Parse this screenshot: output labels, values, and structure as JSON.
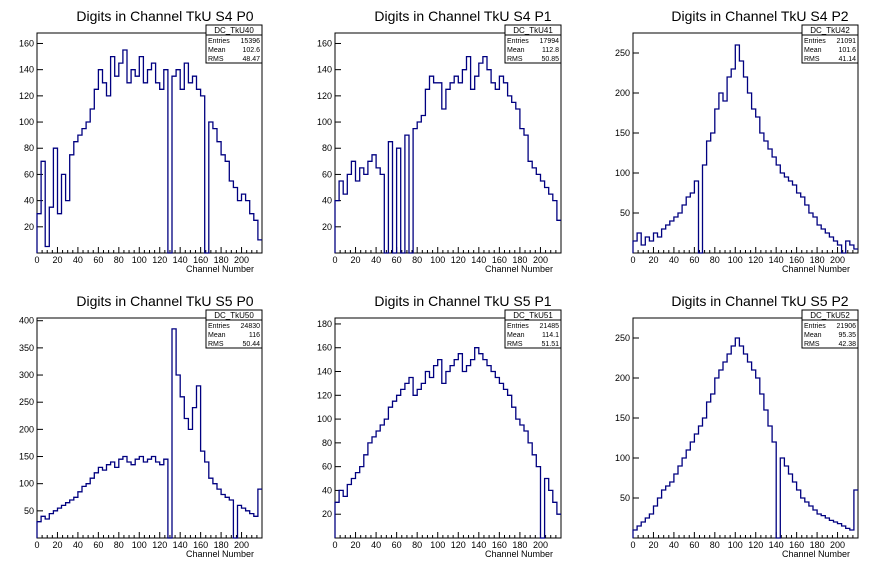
{
  "page": {
    "background": "#ffffff",
    "line_color": "#000080"
  },
  "chart_data": [
    {
      "type": "histogram",
      "title": "Digits in Channel TkU S4 P0",
      "xlabel": "Channel Number",
      "stats": {
        "name": "DC_TkU40",
        "Entries": "15396",
        "Mean": "102.6",
        "RMS": "48.47"
      },
      "xlim": [
        0,
        220
      ],
      "ylim": [
        0,
        168
      ],
      "xticks": [
        0,
        20,
        40,
        60,
        80,
        100,
        120,
        140,
        160,
        180,
        200
      ],
      "yticks": [
        20,
        40,
        60,
        80,
        100,
        120,
        140,
        160
      ],
      "x": [
        0,
        4,
        8,
        12,
        16,
        20,
        24,
        28,
        32,
        36,
        40,
        44,
        48,
        52,
        56,
        60,
        64,
        68,
        72,
        76,
        80,
        84,
        88,
        92,
        96,
        100,
        104,
        108,
        112,
        116,
        120,
        124,
        128,
        132,
        136,
        140,
        144,
        148,
        152,
        156,
        160,
        164,
        168,
        172,
        176,
        180,
        184,
        188,
        192,
        196,
        200,
        204,
        208,
        212,
        216
      ],
      "values": [
        30,
        70,
        5,
        35,
        80,
        30,
        60,
        40,
        75,
        85,
        90,
        95,
        100,
        110,
        125,
        140,
        130,
        120,
        150,
        135,
        145,
        155,
        130,
        140,
        135,
        150,
        130,
        140,
        145,
        130,
        125,
        140,
        0,
        135,
        140,
        125,
        145,
        130,
        135,
        125,
        120,
        0,
        100,
        95,
        85,
        75,
        70,
        55,
        50,
        40,
        45,
        40,
        30,
        25,
        10
      ]
    },
    {
      "type": "histogram",
      "title": "Digits in Channel TkU S4 P1",
      "xlabel": "Channel Number",
      "stats": {
        "name": "DC_TkU41",
        "Entries": "17994",
        "Mean": "112.8",
        "RMS": "50.85"
      },
      "xlim": [
        0,
        220
      ],
      "ylim": [
        0,
        168
      ],
      "xticks": [
        0,
        20,
        40,
        60,
        80,
        100,
        120,
        140,
        160,
        180,
        200
      ],
      "yticks": [
        20,
        40,
        60,
        80,
        100,
        120,
        140,
        160
      ],
      "x": [
        0,
        4,
        8,
        12,
        16,
        20,
        24,
        28,
        32,
        36,
        40,
        44,
        48,
        52,
        56,
        60,
        64,
        68,
        72,
        76,
        80,
        84,
        88,
        92,
        96,
        100,
        104,
        108,
        112,
        116,
        120,
        124,
        128,
        132,
        136,
        140,
        144,
        148,
        152,
        156,
        160,
        164,
        168,
        172,
        176,
        180,
        184,
        188,
        192,
        196,
        200,
        204,
        208,
        212,
        216
      ],
      "values": [
        40,
        55,
        45,
        60,
        70,
        55,
        65,
        60,
        70,
        75,
        65,
        60,
        0,
        85,
        0,
        80,
        0,
        90,
        0,
        95,
        100,
        105,
        125,
        135,
        130,
        130,
        110,
        125,
        130,
        135,
        130,
        140,
        150,
        125,
        135,
        145,
        150,
        140,
        130,
        125,
        135,
        130,
        120,
        115,
        110,
        95,
        90,
        70,
        65,
        60,
        55,
        50,
        45,
        40,
        25
      ]
    },
    {
      "type": "histogram",
      "title": "Digits in Channel TkU S4 P2",
      "xlabel": "Channel Number",
      "stats": {
        "name": "DC_TkU42",
        "Entries": "21091",
        "Mean": "101.6",
        "RMS": "41.14"
      },
      "xlim": [
        0,
        220
      ],
      "ylim": [
        0,
        275
      ],
      "xticks": [
        0,
        20,
        40,
        60,
        80,
        100,
        120,
        140,
        160,
        180,
        200
      ],
      "yticks": [
        50,
        100,
        150,
        200,
        250
      ],
      "x": [
        0,
        4,
        8,
        12,
        16,
        20,
        24,
        28,
        32,
        36,
        40,
        44,
        48,
        52,
        56,
        60,
        64,
        68,
        72,
        76,
        80,
        84,
        88,
        92,
        96,
        100,
        104,
        108,
        112,
        116,
        120,
        124,
        128,
        132,
        136,
        140,
        144,
        148,
        152,
        156,
        160,
        164,
        168,
        172,
        176,
        180,
        184,
        188,
        192,
        196,
        200,
        204,
        208,
        212,
        216
      ],
      "values": [
        15,
        25,
        10,
        20,
        15,
        25,
        20,
        30,
        35,
        40,
        45,
        50,
        60,
        70,
        75,
        90,
        0,
        110,
        140,
        150,
        180,
        200,
        190,
        220,
        230,
        260,
        240,
        220,
        200,
        180,
        170,
        150,
        140,
        130,
        120,
        110,
        100,
        95,
        90,
        85,
        75,
        70,
        60,
        50,
        45,
        35,
        30,
        25,
        20,
        15,
        10,
        0,
        15,
        10,
        5
      ]
    },
    {
      "type": "histogram",
      "title": "Digits in Channel TkU S5 P0",
      "xlabel": "Channel Number",
      "stats": {
        "name": "DC_TkU50",
        "Entries": "24830",
        "Mean": "116",
        "RMS": "50.44"
      },
      "xlim": [
        0,
        220
      ],
      "ylim": [
        0,
        405
      ],
      "xticks": [
        0,
        20,
        40,
        60,
        80,
        100,
        120,
        140,
        160,
        180,
        200
      ],
      "yticks": [
        50,
        100,
        150,
        200,
        250,
        300,
        350,
        400
      ],
      "x": [
        0,
        4,
        8,
        12,
        16,
        20,
        24,
        28,
        32,
        36,
        40,
        44,
        48,
        52,
        56,
        60,
        64,
        68,
        72,
        76,
        80,
        84,
        88,
        92,
        96,
        100,
        104,
        108,
        112,
        116,
        120,
        124,
        128,
        132,
        136,
        140,
        144,
        148,
        152,
        156,
        160,
        164,
        168,
        172,
        176,
        180,
        184,
        188,
        192,
        196,
        200,
        204,
        208,
        212,
        216
      ],
      "values": [
        30,
        40,
        35,
        45,
        50,
        55,
        60,
        65,
        70,
        75,
        85,
        95,
        100,
        110,
        120,
        130,
        125,
        135,
        140,
        130,
        145,
        150,
        140,
        135,
        145,
        150,
        140,
        145,
        150,
        140,
        135,
        145,
        0,
        385,
        300,
        260,
        220,
        200,
        240,
        280,
        160,
        140,
        110,
        100,
        90,
        80,
        75,
        70,
        0,
        60,
        55,
        50,
        45,
        40,
        90
      ]
    },
    {
      "type": "histogram",
      "title": "Digits in Channel TkU S5 P1",
      "xlabel": "Channel Number",
      "stats": {
        "name": "DC_TkU51",
        "Entries": "21485",
        "Mean": "114.1",
        "RMS": "51.51"
      },
      "xlim": [
        0,
        220
      ],
      "ylim": [
        0,
        185
      ],
      "xticks": [
        0,
        20,
        40,
        60,
        80,
        100,
        120,
        140,
        160,
        180,
        200
      ],
      "yticks": [
        20,
        40,
        60,
        80,
        100,
        120,
        140,
        160,
        180
      ],
      "x": [
        0,
        4,
        8,
        12,
        16,
        20,
        24,
        28,
        32,
        36,
        40,
        44,
        48,
        52,
        56,
        60,
        64,
        68,
        72,
        76,
        80,
        84,
        88,
        92,
        96,
        100,
        104,
        108,
        112,
        116,
        120,
        124,
        128,
        132,
        136,
        140,
        144,
        148,
        152,
        156,
        160,
        164,
        168,
        172,
        176,
        180,
        184,
        188,
        192,
        196,
        200,
        204,
        208,
        212,
        216
      ],
      "values": [
        30,
        40,
        35,
        45,
        50,
        55,
        60,
        70,
        80,
        85,
        90,
        95,
        100,
        110,
        115,
        120,
        125,
        130,
        135,
        120,
        125,
        130,
        140,
        135,
        145,
        150,
        130,
        140,
        145,
        150,
        155,
        140,
        145,
        150,
        160,
        155,
        150,
        145,
        140,
        135,
        130,
        125,
        120,
        110,
        100,
        95,
        90,
        80,
        70,
        60,
        0,
        50,
        40,
        30,
        20
      ]
    },
    {
      "type": "histogram",
      "title": "Digits in Channel TkU S5 P2",
      "xlabel": "Channel Number",
      "stats": {
        "name": "DC_TkU52",
        "Entries": "21906",
        "Mean": "95.35",
        "RMS": "42.38"
      },
      "xlim": [
        0,
        220
      ],
      "ylim": [
        0,
        275
      ],
      "xticks": [
        0,
        20,
        40,
        60,
        80,
        100,
        120,
        140,
        160,
        180,
        200
      ],
      "yticks": [
        50,
        100,
        150,
        200,
        250
      ],
      "x": [
        0,
        4,
        8,
        12,
        16,
        20,
        24,
        28,
        32,
        36,
        40,
        44,
        48,
        52,
        56,
        60,
        64,
        68,
        72,
        76,
        80,
        84,
        88,
        92,
        96,
        100,
        104,
        108,
        112,
        116,
        120,
        124,
        128,
        132,
        136,
        140,
        144,
        148,
        152,
        156,
        160,
        164,
        168,
        172,
        176,
        180,
        184,
        188,
        192,
        196,
        200,
        204,
        208,
        212,
        216
      ],
      "values": [
        10,
        15,
        20,
        25,
        30,
        40,
        50,
        60,
        65,
        70,
        80,
        90,
        100,
        110,
        120,
        130,
        140,
        150,
        170,
        180,
        200,
        210,
        220,
        230,
        240,
        250,
        240,
        230,
        220,
        210,
        200,
        180,
        160,
        140,
        120,
        0,
        100,
        90,
        80,
        70,
        60,
        50,
        45,
        40,
        35,
        30,
        28,
        25,
        22,
        20,
        18,
        15,
        12,
        10,
        60
      ]
    }
  ]
}
